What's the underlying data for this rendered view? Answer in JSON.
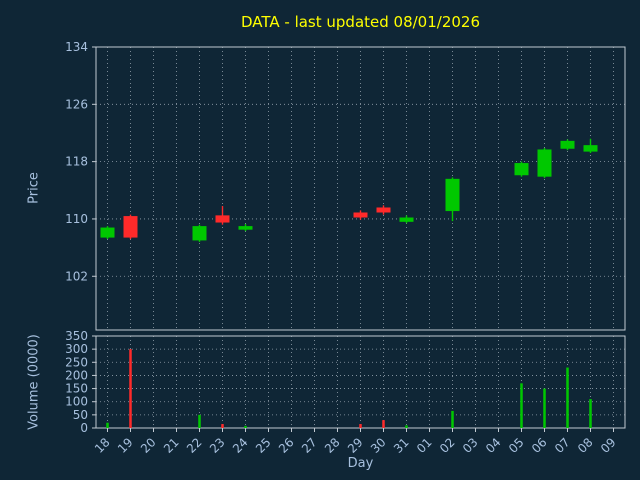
{
  "title": "DATA - last updated 08/01/2026",
  "axes": {
    "price_label": "Price",
    "volume_label": "Volume (0000)",
    "x_label": "Day"
  },
  "colors": {
    "background": "#0f2636",
    "title": "#ffff00",
    "tick_label": "#a7c0de",
    "axis_label": "#a7c0de",
    "spine": "#c2cad2",
    "grid": "#93a1ad",
    "up": "#00c800",
    "down": "#ff2a2a"
  },
  "chart_data": [
    {
      "type": "candlestick",
      "title": "DATA - last updated 08/01/2026",
      "xlabel": "Day",
      "ylabel": "Price",
      "grid": true,
      "x_ticks": [
        "18",
        "19",
        "20",
        "21",
        "22",
        "23",
        "24",
        "25",
        "26",
        "27",
        "28",
        "29",
        "30",
        "31",
        "01",
        "02",
        "03",
        "04",
        "05",
        "06",
        "07",
        "08",
        "09"
      ],
      "y_ticks": [
        102,
        110,
        118,
        126,
        134
      ],
      "ylim": [
        94.5,
        134
      ],
      "candles": [
        {
          "day": "18",
          "open": 107.4,
          "high": 109.0,
          "low": 107.2,
          "close": 108.8
        },
        {
          "day": "19",
          "open": 110.4,
          "high": 110.6,
          "low": 107.2,
          "close": 107.4
        },
        {
          "day": "22",
          "open": 107.0,
          "high": 109.2,
          "low": 106.8,
          "close": 109.0
        },
        {
          "day": "23",
          "open": 110.5,
          "high": 111.8,
          "low": 109.2,
          "close": 109.5
        },
        {
          "day": "24",
          "open": 108.5,
          "high": 109.3,
          "low": 108.3,
          "close": 109.0
        },
        {
          "day": "29",
          "open": 110.9,
          "high": 111.2,
          "low": 109.9,
          "close": 110.2
        },
        {
          "day": "30",
          "open": 111.6,
          "high": 111.9,
          "low": 110.6,
          "close": 110.9
        },
        {
          "day": "31",
          "open": 109.6,
          "high": 110.5,
          "low": 109.4,
          "close": 110.2
        },
        {
          "day": "02",
          "open": 111.1,
          "high": 115.8,
          "low": 109.7,
          "close": 115.6
        },
        {
          "day": "05",
          "open": 116.1,
          "high": 118.0,
          "low": 115.9,
          "close": 117.8
        },
        {
          "day": "06",
          "open": 115.9,
          "high": 119.9,
          "low": 115.7,
          "close": 119.7
        },
        {
          "day": "07",
          "open": 119.8,
          "high": 121.1,
          "low": 119.6,
          "close": 120.9
        },
        {
          "day": "08",
          "open": 119.4,
          "high": 121.2,
          "low": 119.2,
          "close": 120.3
        }
      ]
    },
    {
      "type": "bar",
      "ylabel": "Volume (0000)",
      "grid": true,
      "y_ticks": [
        0,
        50,
        100,
        150,
        200,
        250,
        300,
        350
      ],
      "ylim": [
        0,
        350
      ],
      "bars": [
        {
          "day": "18",
          "value": 20,
          "direction": "up"
        },
        {
          "day": "19",
          "value": 300,
          "direction": "down"
        },
        {
          "day": "22",
          "value": 50,
          "direction": "up"
        },
        {
          "day": "23",
          "value": 15,
          "direction": "down"
        },
        {
          "day": "24",
          "value": 8,
          "direction": "up"
        },
        {
          "day": "29",
          "value": 15,
          "direction": "down"
        },
        {
          "day": "30",
          "value": 30,
          "direction": "down"
        },
        {
          "day": "31",
          "value": 10,
          "direction": "up"
        },
        {
          "day": "02",
          "value": 65,
          "direction": "up"
        },
        {
          "day": "05",
          "value": 170,
          "direction": "up"
        },
        {
          "day": "06",
          "value": 150,
          "direction": "up"
        },
        {
          "day": "07",
          "value": 230,
          "direction": "up"
        },
        {
          "day": "08",
          "value": 110,
          "direction": "up"
        }
      ]
    }
  ]
}
